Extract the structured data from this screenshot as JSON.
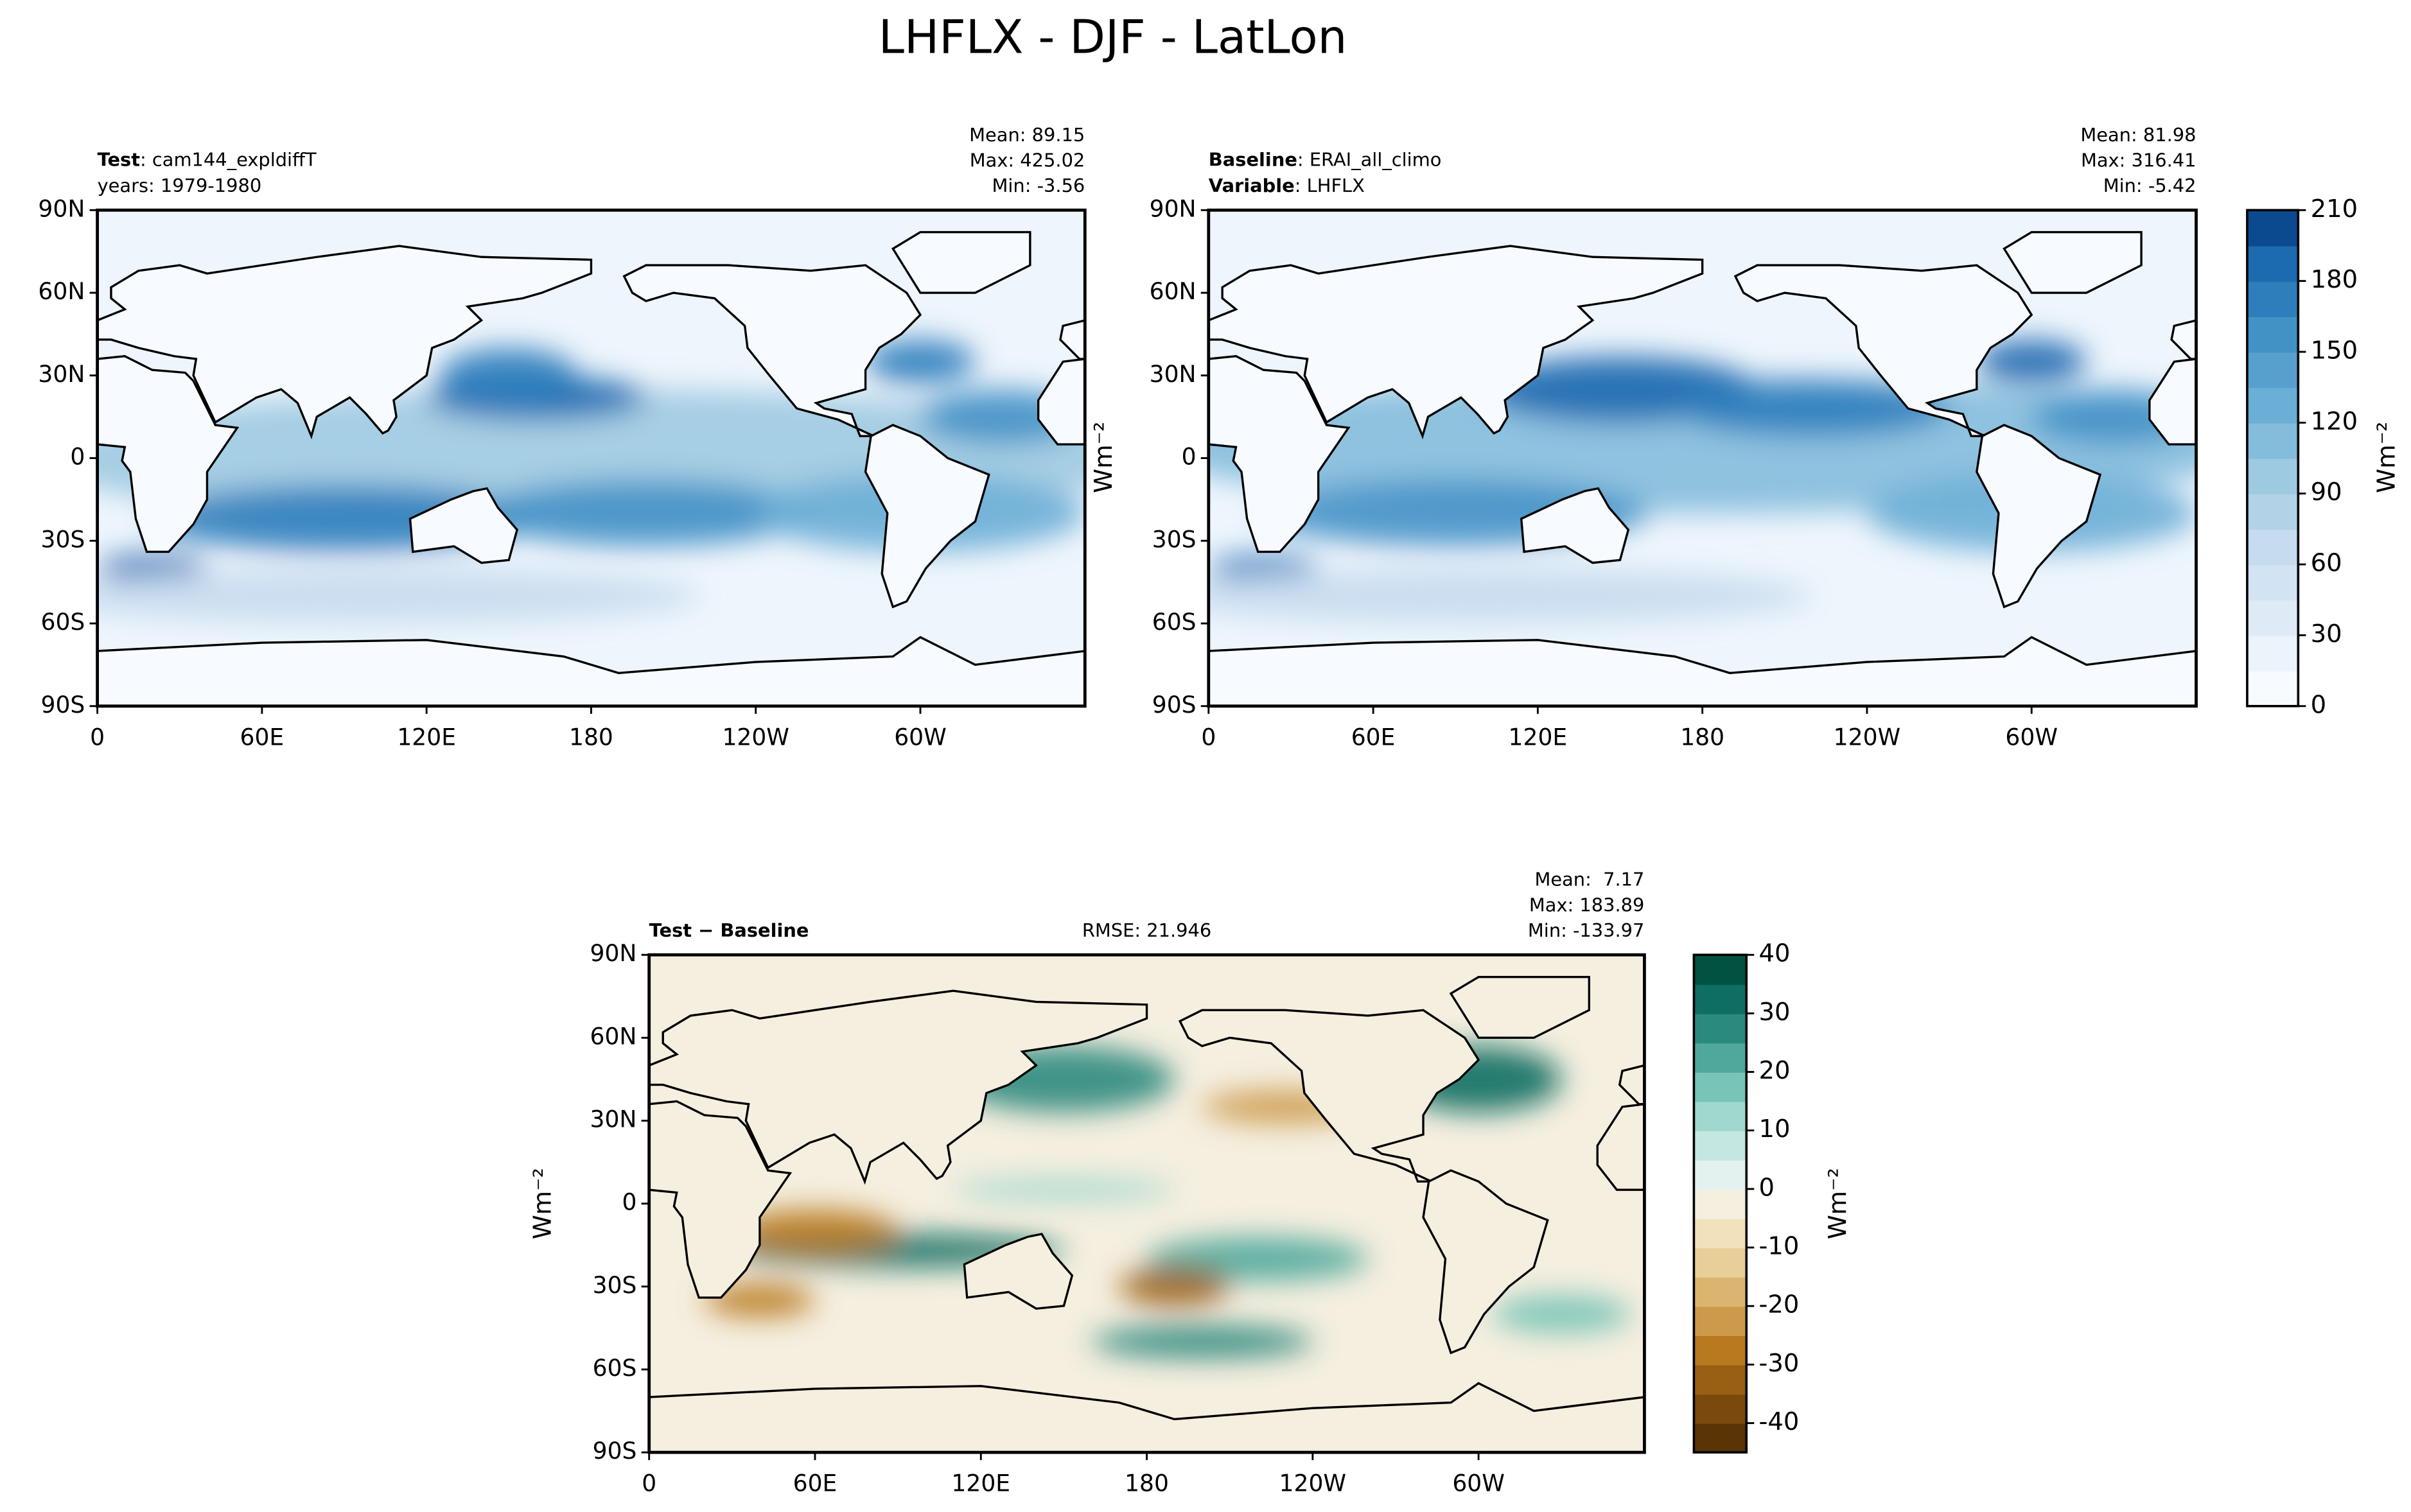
{
  "title": "LHFLX - DJF - LatLon",
  "chart_data": [
    {
      "type": "map",
      "field": "test",
      "lines": [
        [
          {
            "text": "Test",
            "bold": true
          },
          {
            "text": ": cam144_expldiffT"
          }
        ],
        [
          {
            "text": "years: 1979-1980"
          }
        ]
      ],
      "stats": [
        "Mean: 89.15",
        "Max: 425.02",
        "Min: -3.56"
      ],
      "xlim": [
        0,
        360
      ],
      "ylim": [
        -90,
        90
      ],
      "xticks": [
        0,
        {
          "value": 60,
          "label": "60E"
        },
        {
          "value": 120,
          "label": "120E"
        },
        180,
        {
          "value": 240,
          "label": "120W"
        },
        {
          "value": 300,
          "label": "60W"
        }
      ],
      "yticks": [
        {
          "value": -90,
          "label": "90S"
        },
        {
          "value": -60,
          "label": "60S"
        },
        {
          "value": -30,
          "label": "30S"
        },
        0,
        {
          "value": 30,
          "label": "30N"
        },
        {
          "value": 60,
          "label": "60N"
        },
        {
          "value": 90,
          "label": "90N"
        }
      ]
    },
    {
      "type": "map",
      "field": "baseline",
      "lines": [
        [
          {
            "text": "Baseline",
            "bold": true
          },
          {
            "text": ": ERAI_all_climo"
          }
        ],
        [
          {
            "text": "Variable",
            "bold": true
          },
          {
            "text": ": LHFLX"
          }
        ]
      ],
      "stats": [
        "Mean: 81.98",
        "Max: 316.41",
        "Min: -5.42"
      ],
      "ylabel": "Wm⁻²",
      "xlim": [
        0,
        360
      ],
      "ylim": [
        -90,
        90
      ],
      "xticks": [
        0,
        {
          "value": 60,
          "label": "60E"
        },
        {
          "value": 120,
          "label": "120E"
        },
        180,
        {
          "value": 240,
          "label": "120W"
        },
        {
          "value": 300,
          "label": "60W"
        }
      ],
      "yticks": [
        {
          "value": -90,
          "label": "90S"
        },
        {
          "value": -60,
          "label": "60S"
        },
        {
          "value": -30,
          "label": "30S"
        },
        0,
        {
          "value": 30,
          "label": "30N"
        },
        {
          "value": 60,
          "label": "60N"
        },
        {
          "value": 90,
          "label": "90N"
        }
      ],
      "colorbar": {
        "lim": [
          0,
          210
        ],
        "ticks": [
          0,
          30,
          60,
          90,
          120,
          150,
          180,
          210
        ],
        "label": "Wm⁻²",
        "colors": [
          "#f7fbff",
          "#ebf3fb",
          "#deebf7",
          "#d2e3f3",
          "#c6dbef",
          "#b2d2e8",
          "#9ecae1",
          "#84bcdb",
          "#6baed6",
          "#57a0ce",
          "#4292c6",
          "#2f7ebc",
          "#1c6ab0",
          "#0b4a8e"
        ]
      }
    },
    {
      "type": "map",
      "field": "diff",
      "lines": [
        [
          {
            "text": "Test − Baseline",
            "bold": true
          }
        ]
      ],
      "center_text": "RMSE: 21.946",
      "stats": [
        "Mean:  7.17",
        "Max: 183.89",
        "Min: -133.97"
      ],
      "ylabel": "Wm⁻²",
      "xlim": [
        0,
        360
      ],
      "ylim": [
        -90,
        90
      ],
      "xticks": [
        0,
        {
          "value": 60,
          "label": "60E"
        },
        {
          "value": 120,
          "label": "120E"
        },
        180,
        {
          "value": 240,
          "label": "120W"
        },
        {
          "value": 300,
          "label": "60W"
        }
      ],
      "yticks": [
        {
          "value": -90,
          "label": "90S"
        },
        {
          "value": -60,
          "label": "60S"
        },
        {
          "value": -30,
          "label": "30S"
        },
        0,
        {
          "value": 30,
          "label": "30N"
        },
        {
          "value": 60,
          "label": "60N"
        },
        {
          "value": 90,
          "label": "90N"
        }
      ],
      "colorbar": {
        "lim": [
          -45,
          40
        ],
        "ticks": [
          -40,
          -30,
          -20,
          -10,
          0,
          10,
          20,
          30,
          40
        ],
        "label": "Wm⁻²",
        "colors": [
          "#5a3405",
          "#7a4a0c",
          "#995f13",
          "#b8791f",
          "#cc9a4a",
          "#dbb56f",
          "#e8cf98",
          "#f2e2bc",
          "#f5efe0",
          "#e3f2ef",
          "#c4e7e1",
          "#a0d8ce",
          "#78c4b7",
          "#4fa89b",
          "#2b8a7e",
          "#0f6e63",
          "#01533f"
        ]
      }
    }
  ]
}
